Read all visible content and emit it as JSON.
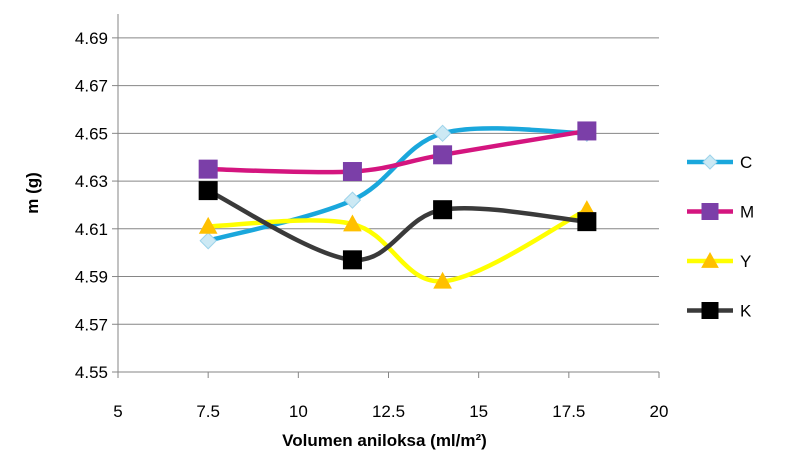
{
  "chart_data": {
    "type": "scatter",
    "xlabel": "Volumen aniloksa (ml/m²)",
    "ylabel": "m (g)",
    "xlim": [
      5,
      20
    ],
    "ylim": [
      4.55,
      4.7
    ],
    "x_ticks": [
      "5",
      "7.5",
      "10",
      "12.5",
      "15",
      "17.5",
      "20"
    ],
    "y_ticks": [
      "4.55",
      "4.57",
      "4.59",
      "4.61",
      "4.63",
      "4.65",
      "4.67",
      "4.69"
    ],
    "grid": "horizontal",
    "legend_position": "right",
    "smooth_lines": true,
    "x": [
      7.5,
      11.5,
      14,
      18
    ],
    "series": [
      {
        "name": "C",
        "values": [
          4.605,
          4.622,
          4.65,
          4.65
        ],
        "color": "#1AA7DC",
        "marker": "diamond",
        "marker_fill": "#CCE9F4"
      },
      {
        "name": "M",
        "values": [
          4.635,
          4.634,
          4.641,
          4.651
        ],
        "color": "#D4157F",
        "marker": "square",
        "marker_fill": "#7B3FA8"
      },
      {
        "name": "Y",
        "values": [
          4.611,
          4.612,
          4.588,
          4.618
        ],
        "color": "#FFFF00",
        "marker": "triangle",
        "marker_fill": "#FFC000"
      },
      {
        "name": "K",
        "values": [
          4.626,
          4.597,
          4.618,
          4.613
        ],
        "color": "#3A3A3A",
        "marker": "square",
        "marker_fill": "#000000"
      }
    ]
  }
}
